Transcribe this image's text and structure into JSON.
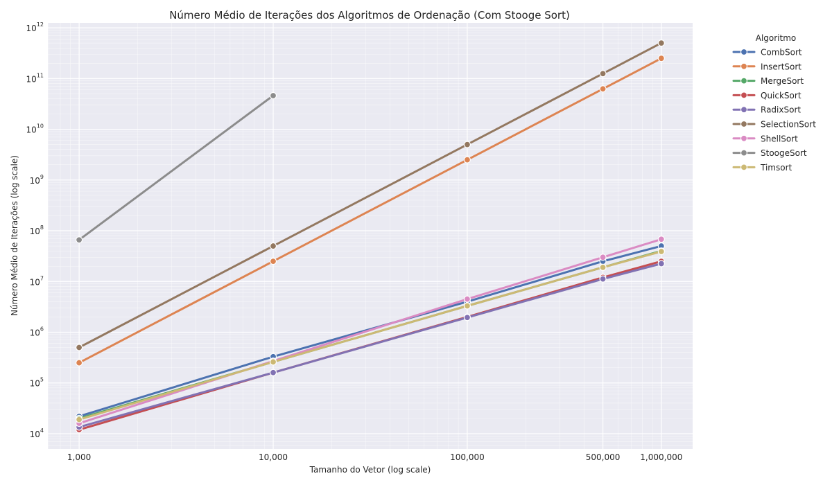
{
  "chart_data": {
    "type": "line",
    "title": "Número Médio de Iterações dos Algoritmos de Ordenação (Com Stooge Sort)",
    "xlabel": "Tamanho do Vetor (log scale)",
    "ylabel": "Número Médio de Iterações (log scale)",
    "x_scale": "log",
    "y_scale": "log",
    "xlim": [
      690,
      1450000
    ],
    "ylim": [
      5000,
      1250000000000.0
    ],
    "x_ticks": [
      1000,
      10000,
      100000,
      500000,
      1000000
    ],
    "x_tick_labels": [
      "1,000",
      "10,000",
      "100,000",
      "500,000",
      "1,000,000"
    ],
    "y_ticks": [
      {
        "value": 10000,
        "base": "10",
        "exp": "4"
      },
      {
        "value": 100000,
        "base": "10",
        "exp": "5"
      },
      {
        "value": 1000000,
        "base": "10",
        "exp": "6"
      },
      {
        "value": 10000000,
        "base": "10",
        "exp": "7"
      },
      {
        "value": 100000000,
        "base": "10",
        "exp": "8"
      },
      {
        "value": 1000000000,
        "base": "10",
        "exp": "9"
      },
      {
        "value": 10000000000,
        "base": "10",
        "exp": "10"
      },
      {
        "value": 100000000000,
        "base": "10",
        "exp": "11"
      },
      {
        "value": 1000000000000,
        "base": "10",
        "exp": "12"
      }
    ],
    "grid": true,
    "legend": {
      "title": "Algoritmo",
      "position": "outside-right"
    },
    "series": [
      {
        "name": "CombSort",
        "color": "#4c72b0",
        "x": [
          1000,
          10000,
          100000,
          500000,
          1000000
        ],
        "y": [
          22000,
          330000,
          4000000,
          25000000,
          50000000
        ]
      },
      {
        "name": "InsertSort",
        "color": "#dd8452",
        "x": [
          1000,
          10000,
          100000,
          500000,
          1000000
        ],
        "y": [
          250000,
          25000000,
          2500000000,
          62500000000,
          250000000000
        ]
      },
      {
        "name": "MergeSort",
        "color": "#55a868",
        "x": [
          1000,
          10000,
          100000,
          500000,
          1000000
        ],
        "y": [
          20000,
          260000,
          3300000,
          19000000,
          40000000
        ]
      },
      {
        "name": "QuickSort",
        "color": "#c44e52",
        "x": [
          1000,
          10000,
          100000,
          500000,
          1000000
        ],
        "y": [
          12000,
          160000,
          2000000,
          12000000,
          25000000
        ]
      },
      {
        "name": "RadixSort",
        "color": "#8172b3",
        "x": [
          1000,
          10000,
          100000,
          500000,
          1000000
        ],
        "y": [
          13500,
          160000,
          1950000,
          11200000,
          22500000
        ]
      },
      {
        "name": "SelectionSort",
        "color": "#937860",
        "x": [
          1000,
          10000,
          100000,
          500000,
          1000000
        ],
        "y": [
          500000,
          50000000,
          5000000000,
          125000000000,
          500000000000
        ]
      },
      {
        "name": "ShellSort",
        "color": "#da8bc3",
        "x": [
          1000,
          10000,
          100000,
          500000,
          1000000
        ],
        "y": [
          16000,
          270000,
          4500000,
          30000000,
          68000000
        ]
      },
      {
        "name": "StoogeSort",
        "color": "#8c8c8c",
        "x": [
          1000,
          10000
        ],
        "y": [
          66000000,
          46000000000
        ]
      },
      {
        "name": "Timsort",
        "color": "#ccb974",
        "x": [
          1000,
          10000,
          100000,
          500000,
          1000000
        ],
        "y": [
          19000,
          260000,
          3300000,
          19000000,
          39000000
        ]
      }
    ]
  }
}
